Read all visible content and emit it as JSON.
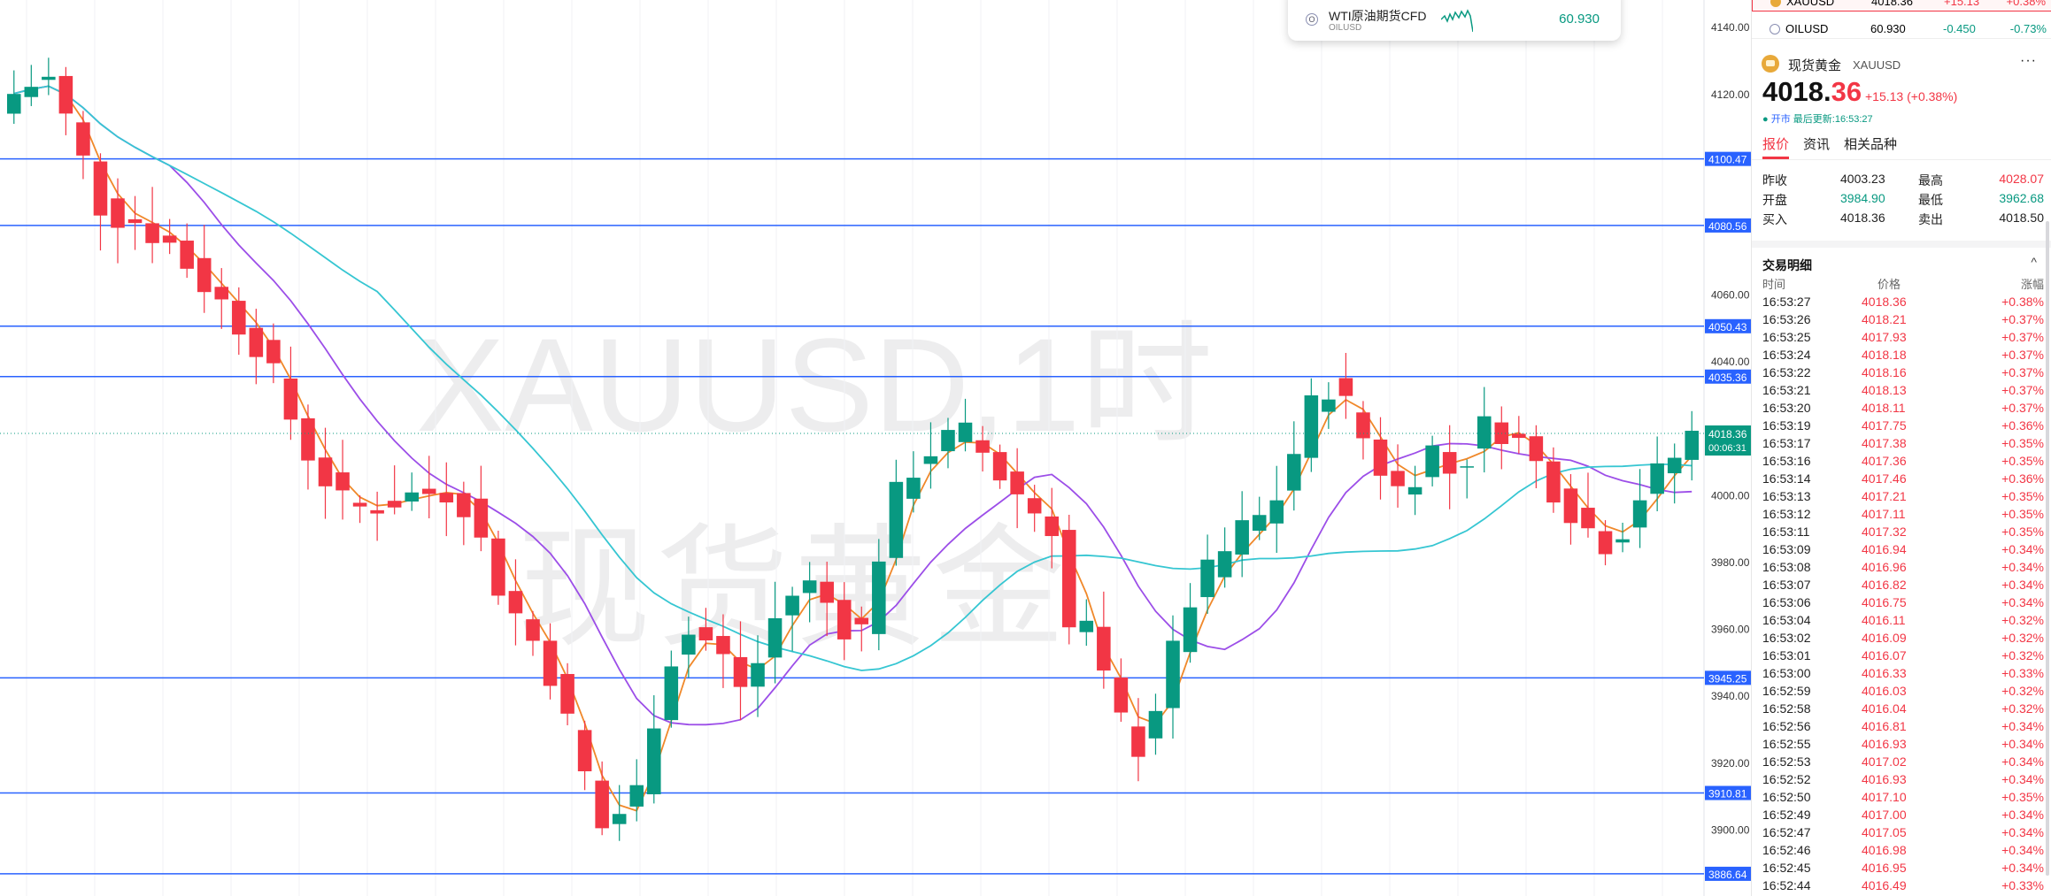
{
  "chart": {
    "symbol_watermark": "XAUUSD,1时",
    "name_watermark": "现货黄金",
    "y_axis": {
      "min": 3880,
      "max": 4148,
      "ticks": [
        3900,
        3920,
        3940,
        3960,
        3980,
        4000,
        4040,
        4060,
        4080,
        4120,
        4140
      ]
    },
    "hlines": [
      {
        "value": 4100.47,
        "label": "4100.47"
      },
      {
        "value": 4080.56,
        "label": "4080.56"
      },
      {
        "value": 4050.43,
        "label": "4050.43"
      },
      {
        "value": 4035.36,
        "label": "4035.36"
      },
      {
        "value": 3945.25,
        "label": "3945.25"
      },
      {
        "value": 3910.81,
        "label": "3910.81"
      },
      {
        "value": 3886.64,
        "label": "3886.64"
      }
    ],
    "last_price": {
      "value": 4018.36,
      "label": "4018.36",
      "countdown": "00:06:31"
    },
    "colors": {
      "up": "#089981",
      "down": "#f23645",
      "hline": "#2962ff",
      "ma_fast": "#f0882a",
      "ma_mid": "#9c4ee8",
      "ma_slow": "#36c6d2"
    }
  },
  "popup": {
    "items": [
      {
        "icon": "O",
        "name": "WTI原油期货CFD",
        "code": "OILUSD",
        "price": "60.930"
      }
    ]
  },
  "watchlist": {
    "top": {
      "symbol": "XAUUSD",
      "price": "4018.36",
      "change": "+15.13",
      "percent": "+0.38%"
    },
    "oil": {
      "symbol": "OILUSD",
      "price": "60.930",
      "change": "-0.450",
      "percent": "-0.73%"
    }
  },
  "detail": {
    "name": "现货黄金",
    "symbol": "XAUUSD",
    "price_int": "4018.",
    "price_dec": "36",
    "change": "+15.13 (+0.38%)",
    "status_label": "开市",
    "status_time": "最后更新:16:53:27",
    "more": "···",
    "tabs": [
      "报价",
      "资讯",
      "相关品种"
    ],
    "quote": [
      {
        "l1": "昨收",
        "v1": "4003.23",
        "c1": "#222222",
        "l2": "最高",
        "v2": "4028.07",
        "c2": "#f23645"
      },
      {
        "l1": "开盘",
        "v1": "3984.90",
        "c1": "#089981",
        "l2": "最低",
        "v2": "3962.68",
        "c2": "#089981"
      },
      {
        "l1": "买入",
        "v1": "4018.36",
        "c1": "#222222",
        "l2": "卖出",
        "v2": "4018.50",
        "c2": "#222222"
      }
    ]
  },
  "trades": {
    "title": "交易明细",
    "headers": {
      "time": "时间",
      "price": "价格",
      "change": "涨幅"
    },
    "rows": [
      [
        "16:53:27",
        "4018.36",
        "+0.38%"
      ],
      [
        "16:53:26",
        "4018.21",
        "+0.37%"
      ],
      [
        "16:53:25",
        "4017.93",
        "+0.37%"
      ],
      [
        "16:53:24",
        "4018.18",
        "+0.37%"
      ],
      [
        "16:53:22",
        "4018.16",
        "+0.37%"
      ],
      [
        "16:53:21",
        "4018.13",
        "+0.37%"
      ],
      [
        "16:53:20",
        "4018.11",
        "+0.37%"
      ],
      [
        "16:53:19",
        "4017.75",
        "+0.36%"
      ],
      [
        "16:53:17",
        "4017.38",
        "+0.35%"
      ],
      [
        "16:53:16",
        "4017.36",
        "+0.35%"
      ],
      [
        "16:53:14",
        "4017.46",
        "+0.36%"
      ],
      [
        "16:53:13",
        "4017.21",
        "+0.35%"
      ],
      [
        "16:53:12",
        "4017.11",
        "+0.35%"
      ],
      [
        "16:53:11",
        "4017.32",
        "+0.35%"
      ],
      [
        "16:53:09",
        "4016.94",
        "+0.34%"
      ],
      [
        "16:53:08",
        "4016.96",
        "+0.34%"
      ],
      [
        "16:53:07",
        "4016.82",
        "+0.34%"
      ],
      [
        "16:53:06",
        "4016.75",
        "+0.34%"
      ],
      [
        "16:53:04",
        "4016.11",
        "+0.32%"
      ],
      [
        "16:53:02",
        "4016.09",
        "+0.32%"
      ],
      [
        "16:53:01",
        "4016.07",
        "+0.32%"
      ],
      [
        "16:53:00",
        "4016.33",
        "+0.33%"
      ],
      [
        "16:52:59",
        "4016.03",
        "+0.32%"
      ],
      [
        "16:52:58",
        "4016.04",
        "+0.32%"
      ],
      [
        "16:52:56",
        "4016.81",
        "+0.34%"
      ],
      [
        "16:52:55",
        "4016.93",
        "+0.34%"
      ],
      [
        "16:52:53",
        "4017.02",
        "+0.34%"
      ],
      [
        "16:52:52",
        "4016.93",
        "+0.34%"
      ],
      [
        "16:52:50",
        "4017.10",
        "+0.35%"
      ],
      [
        "16:52:49",
        "4017.00",
        "+0.34%"
      ],
      [
        "16:52:47",
        "4017.05",
        "+0.34%"
      ],
      [
        "16:52:46",
        "4016.98",
        "+0.34%"
      ],
      [
        "16:52:45",
        "4016.95",
        "+0.34%"
      ],
      [
        "16:52:44",
        "4016.49",
        "+0.33%"
      ]
    ]
  }
}
